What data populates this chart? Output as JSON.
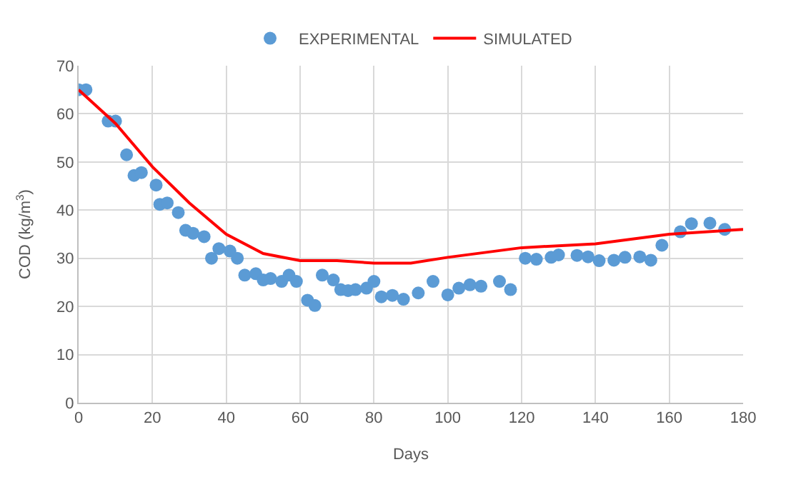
{
  "chart_data": {
    "type": "scatter",
    "xlabel": "Days",
    "ylabel": "COD (kg/m$^{3}$)",
    "xlim": [
      0,
      180
    ],
    "xticks": [
      0,
      20,
      40,
      60,
      80,
      100,
      120,
      140,
      160,
      180
    ],
    "ylim": [
      0,
      70
    ],
    "yticks": [
      0,
      10,
      20,
      30,
      40,
      50,
      60,
      70
    ],
    "grid": true,
    "legend": "top",
    "series": [
      {
        "name": "EXPERIMENTAL",
        "marker": "circle",
        "color": "#5b9bd5",
        "x": [
          0,
          2,
          8,
          10,
          13,
          15,
          17,
          21,
          22,
          24,
          27,
          29,
          31,
          34,
          36,
          38,
          41,
          43,
          45,
          48,
          50,
          52,
          55,
          57,
          59,
          62,
          64,
          66,
          69,
          71,
          73,
          75,
          78,
          80,
          82,
          85,
          88,
          92,
          96,
          100,
          103,
          106,
          109,
          114,
          117,
          121,
          124,
          128,
          130,
          135,
          138,
          141,
          145,
          148,
          152,
          155,
          158,
          163,
          166,
          171,
          175
        ],
        "values": [
          65,
          65,
          58.5,
          58.5,
          51.5,
          47.2,
          47.8,
          45.2,
          41.2,
          41.5,
          39.5,
          35.8,
          35.2,
          34.5,
          30,
          32,
          31.5,
          30,
          26.5,
          26.8,
          25.5,
          25.8,
          25.2,
          26.5,
          25.2,
          21.3,
          20.2,
          26.5,
          25.5,
          23.5,
          23.3,
          23.5,
          23.8,
          25.2,
          22,
          22.3,
          21.5,
          22.8,
          25.2,
          22.4,
          23.8,
          24.5,
          24.2,
          25.2,
          23.5,
          30,
          29.8,
          30.2,
          30.7,
          30.6,
          30.3,
          29.5,
          29.6,
          30.2,
          30.3,
          29.6,
          32.7,
          35.5,
          37.2,
          37.3,
          36
        ]
      },
      {
        "name": "SIMULATED",
        "type": "line",
        "marker": "none",
        "line_style": "solid",
        "color": "#ff0000",
        "x": [
          0,
          10,
          20,
          30,
          40,
          50,
          60,
          70,
          80,
          90,
          100,
          110,
          120,
          140,
          160,
          180
        ],
        "values": [
          65,
          58,
          49,
          41.5,
          35,
          31,
          29.5,
          29.5,
          29,
          29,
          30.2,
          31.2,
          32.2,
          33,
          35,
          36
        ]
      }
    ]
  }
}
